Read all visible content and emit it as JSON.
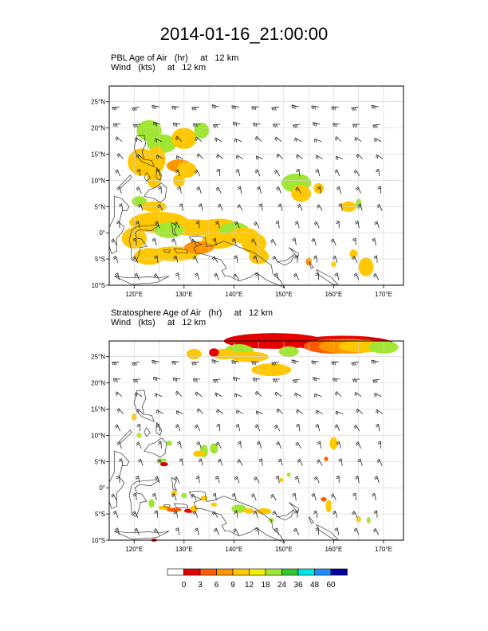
{
  "title": "2014-01-16_21:00:00",
  "panels": [
    {
      "label_line1": "PBL Age of Air   (hr)     at   12 km",
      "label_line2": "Wind   (kts)     at   12 km",
      "lat_ticks": [
        "25°N",
        "20°N",
        "15°N",
        "10°N",
        "5°N",
        "0°",
        "5°S",
        "10°S"
      ],
      "lon_ticks": [
        "120°E",
        "130°E",
        "140°E",
        "150°E",
        "160°E",
        "170°E"
      ]
    },
    {
      "label_line1": "Stratosphere Age of Air   (hr)     at   12 km",
      "label_line2": "Wind   (kts)     at   12 km",
      "lat_ticks": [
        "25°N",
        "20°N",
        "15°N",
        "10°N",
        "5°N",
        "0°",
        "5°S",
        "10°S"
      ],
      "lon_ticks": [
        "120°E",
        "130°E",
        "140°E",
        "150°E",
        "160°E",
        "170°E"
      ]
    }
  ],
  "colorbar": {
    "labels": [
      "0",
      "3",
      "6",
      "9",
      "12",
      "18",
      "24",
      "36",
      "48",
      "60"
    ],
    "colors": [
      "#ffffff",
      "#e60000",
      "#ff5a00",
      "#ff9600",
      "#ffc800",
      "#f0f000",
      "#a0e632",
      "#32c832",
      "#00e6e6",
      "#1e8cff",
      "#0000a0"
    ]
  },
  "map_extent": {
    "lon_min": 115,
    "lon_max": 174,
    "lat_min": -10,
    "lat_max": 28
  }
}
